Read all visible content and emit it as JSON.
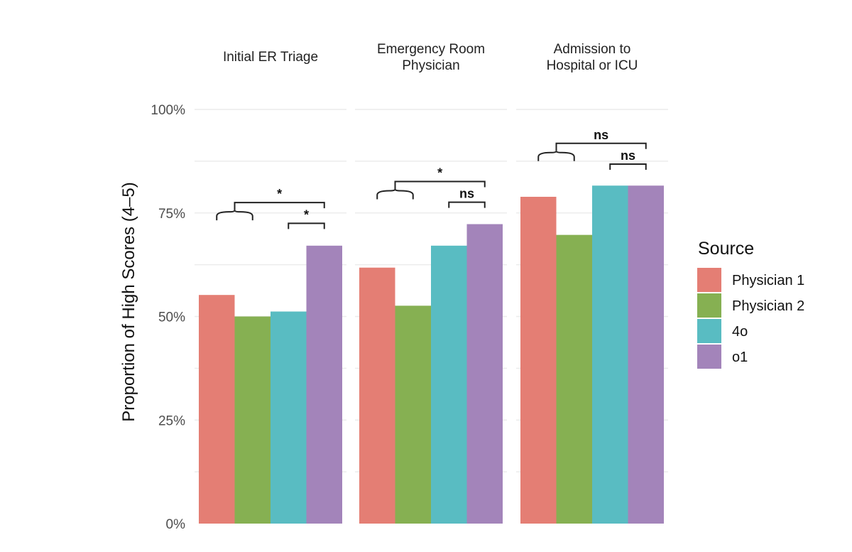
{
  "chart_data": {
    "type": "bar",
    "title": "",
    "ylabel": "Proportion of High Scores (4–5)",
    "xlabel": "",
    "ylim": [
      0,
      1
    ],
    "yticks": [
      {
        "value": 0,
        "label": "0%"
      },
      {
        "value": 0.25,
        "label": "25%"
      },
      {
        "value": 0.5,
        "label": "50%"
      },
      {
        "value": 0.75,
        "label": "75%"
      },
      {
        "value": 1,
        "label": "100%"
      }
    ],
    "grid": true,
    "legend": {
      "title": "Source",
      "position": "right"
    },
    "series": [
      {
        "name": "Physician 1",
        "color": "#E47E74"
      },
      {
        "name": "Physician 2",
        "color": "#86B052"
      },
      {
        "name": "4o",
        "color": "#59BCC2"
      },
      {
        "name": "o1",
        "color": "#A384BA"
      }
    ],
    "facets": [
      {
        "title_lines": [
          "Initial ER Triage"
        ],
        "values": [
          0.552,
          0.5,
          0.512,
          0.671
        ],
        "comparisons": [
          {
            "label": "*",
            "from": "Physician 1-2",
            "to": "o1",
            "y": 0.775
          },
          {
            "label": "*",
            "from": "4o",
            "to": "o1",
            "y": 0.725
          }
        ]
      },
      {
        "title_lines": [
          "Emergency Room",
          "Physician"
        ],
        "values": [
          0.618,
          0.526,
          0.671,
          0.723
        ],
        "comparisons": [
          {
            "label": "*",
            "from": "Physician 1-2",
            "to": "o1",
            "y": 0.826
          },
          {
            "label": "ns",
            "from": "4o",
            "to": "o1",
            "y": 0.776
          }
        ]
      },
      {
        "title_lines": [
          "Admission  to",
          "Hospital or ICU"
        ],
        "values": [
          0.789,
          0.697,
          0.816,
          0.816
        ],
        "comparisons": [
          {
            "label": "ns",
            "from": "Physician 1-2",
            "to": "o1",
            "y": 0.918
          },
          {
            "label": "ns",
            "from": "4o",
            "to": "o1",
            "y": 0.868
          }
        ]
      }
    ]
  }
}
